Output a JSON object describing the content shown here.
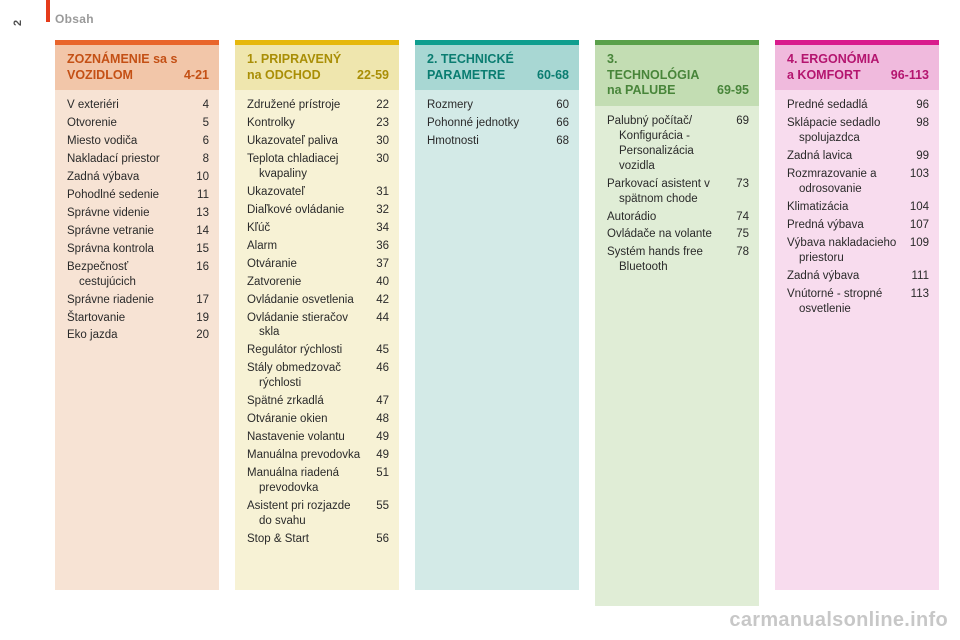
{
  "page_number": "2",
  "header_label": "Obsah",
  "watermark": "carmanualsonline.info",
  "columns": [
    {
      "top_color": "#e9652b",
      "header_bg": "#f2c6a9",
      "header_text_color": "#c45015",
      "body_bg": "#f7e3d4",
      "title": "ZOZNÁMENIE sa s VOZIDLOM",
      "range": "4-21",
      "items": [
        {
          "label": "V exteriéri",
          "page": "4"
        },
        {
          "label": "Otvorenie",
          "page": "5"
        },
        {
          "label": "Miesto vodiča",
          "page": "6"
        },
        {
          "label": "Nakladací priestor",
          "page": "8"
        },
        {
          "label": "Zadná výbava",
          "page": "10"
        },
        {
          "label": "Pohodlné sedenie",
          "page": "11"
        },
        {
          "label": "Správne videnie",
          "page": "13"
        },
        {
          "label": "Správne vetranie",
          "page": "14"
        },
        {
          "label": "Správna kontrola",
          "page": "15"
        },
        {
          "label": "Bezpečnosť cestujúcich",
          "page": "16"
        },
        {
          "label": "Správne riadenie",
          "page": "17"
        },
        {
          "label": "Štartovanie",
          "page": "19"
        },
        {
          "label": "Eko jazda",
          "page": "20"
        }
      ]
    },
    {
      "top_color": "#e6b80c",
      "header_bg": "#efe6ae",
      "header_text_color": "#a98e06",
      "body_bg": "#f7f2d5",
      "title": "1. PRIPRAVENÝ na ODCHOD",
      "range": "22-59",
      "items": [
        {
          "label": "Združené prístroje",
          "page": "22"
        },
        {
          "label": "Kontrolky",
          "page": "23"
        },
        {
          "label": "Ukazovateľ paliva",
          "page": "30"
        },
        {
          "label": "Teplota chladiacej kvapaliny",
          "page": "30"
        },
        {
          "label": "Ukazovateľ",
          "page": "31"
        },
        {
          "label": "Diaľkové ovládanie",
          "page": "32"
        },
        {
          "label": "Kľúč",
          "page": "34"
        },
        {
          "label": "Alarm",
          "page": "36"
        },
        {
          "label": "Otváranie",
          "page": "37"
        },
        {
          "label": "Zatvorenie",
          "page": "40"
        },
        {
          "label": "Ovládanie osvetlenia",
          "page": "42"
        },
        {
          "label": "Ovládanie stieračov skla",
          "page": "44"
        },
        {
          "label": "Regulátor rýchlosti",
          "page": "45"
        },
        {
          "label": "Stály obmedzovač rýchlosti",
          "page": "46"
        },
        {
          "label": "Spätné zrkadlá",
          "page": "47"
        },
        {
          "label": "Otváranie okien",
          "page": "48"
        },
        {
          "label": "Nastavenie volantu",
          "page": "49"
        },
        {
          "label": "Manuálna prevodovka",
          "page": "49"
        },
        {
          "label": "Manuálna riadená prevodovka",
          "page": "51"
        },
        {
          "label": "Asistent pri rozjazde do svahu",
          "page": "55"
        },
        {
          "label": "Stop & Start",
          "page": "56"
        }
      ]
    },
    {
      "top_color": "#0f9e8f",
      "header_bg": "#a8d7d3",
      "header_text_color": "#0a7d71",
      "body_bg": "#d3eae7",
      "title": "2. TECHNICKÉ PARAMETRE",
      "range": "60-68",
      "items": [
        {
          "label": "Rozmery",
          "page": "60"
        },
        {
          "label": "Pohonné jednotky",
          "page": "66"
        },
        {
          "label": "Hmotnosti",
          "page": "68"
        }
      ]
    },
    {
      "top_color": "#5aa04a",
      "header_bg": "#c3ddb3",
      "header_text_color": "#48853a",
      "body_bg": "#e0edd6",
      "title": "3. TECHNOLÓGIA na PALUBE",
      "range": "69-95",
      "items": [
        {
          "label": "Palubný počítač/ Konfigurácia - Personalizácia vozidla",
          "page": "69"
        },
        {
          "label": "Parkovací asistent v spätnom chode",
          "page": "73"
        },
        {
          "label": "Autorádio",
          "page": "74"
        },
        {
          "label": "Ovládače na volante",
          "page": "75"
        },
        {
          "label": "Systém hands free Bluetooth",
          "page": "78"
        }
      ]
    },
    {
      "top_color": "#d91b8d",
      "header_bg": "#f0badd",
      "header_text_color": "#b4156f",
      "body_bg": "#f8dcee",
      "title": "4. ERGONÓMIA a KOMFORT",
      "range": "96-113",
      "items": [
        {
          "label": "Predné sedadlá",
          "page": "96"
        },
        {
          "label": "Sklápacie sedadlo spolujazdca",
          "page": "98"
        },
        {
          "label": "Zadná lavica",
          "page": "99"
        },
        {
          "label": "Rozmrazovanie a odrosovanie",
          "page": "103"
        },
        {
          "label": "Klimatizácia",
          "page": "104"
        },
        {
          "label": "Predná výbava",
          "page": "107"
        },
        {
          "label": "Výbava nakladacieho priestoru",
          "page": "109"
        },
        {
          "label": "Zadná výbava",
          "page": "111"
        },
        {
          "label": "Vnútorné - stropné osvetlenie",
          "page": "113"
        }
      ]
    }
  ]
}
